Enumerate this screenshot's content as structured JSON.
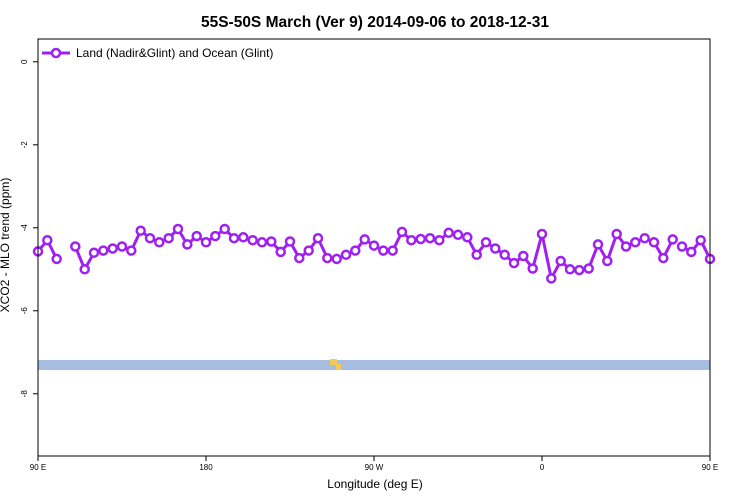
{
  "chart_data": {
    "type": "line",
    "title": "55S-50S March (Ver 9)   2014-09-06 to 2018-12-31",
    "xlabel": "Longitude (deg E)",
    "ylabel": "XCO2 - MLO trend (ppm)",
    "xlim": [
      90,
      450
    ],
    "ylim": [
      -9.5,
      0.55
    ],
    "x_ticks": [
      {
        "value": 90,
        "label": "90 E"
      },
      {
        "value": 180,
        "label": "180"
      },
      {
        "value": 270,
        "label": "90 W"
      },
      {
        "value": 360,
        "label": "0"
      },
      {
        "value": 450,
        "label": "90 E"
      },
      {
        "value": 540,
        "label": "180"
      }
    ],
    "y_ticks": [
      {
        "value": 0,
        "label": "0"
      },
      {
        "value": -2,
        "label": "-2"
      },
      {
        "value": -4,
        "label": "-4"
      },
      {
        "value": -6,
        "label": "-6"
      },
      {
        "value": -8,
        "label": "-8"
      }
    ],
    "legend_position": "top-left",
    "series": [
      {
        "name": "Land (Nadir&Glint) and Ocean (Glint)",
        "color": "#a020f0",
        "segments": [
          {
            "x": [
              90,
              95,
              100
            ],
            "y": [
              -4.57,
              -4.3,
              -4.75
            ]
          },
          {
            "x": [
              110,
              115,
              120,
              125,
              130,
              135,
              140,
              145,
              150,
              155,
              160,
              165,
              170,
              175,
              180,
              185,
              190,
              195,
              200,
              205,
              210,
              215,
              220,
              225,
              230,
              235,
              240,
              245,
              250,
              255,
              260,
              265,
              270,
              275,
              280,
              285,
              290,
              295,
              300,
              305,
              310,
              315,
              320,
              325,
              330,
              335,
              340,
              345,
              350,
              355,
              360,
              365,
              370,
              375,
              380,
              385,
              390,
              395,
              400,
              405,
              410,
              415,
              420,
              425,
              430
            ],
            "y": [
              -4.45,
              -5.0,
              -4.6,
              -4.55,
              -4.5,
              -4.45,
              -4.55,
              -4.07,
              -4.25,
              -4.35,
              -4.25,
              -4.03,
              -4.4,
              -4.2,
              -4.35,
              -4.2,
              -4.03,
              -4.25,
              -4.23,
              -4.3,
              -4.35,
              -4.33,
              -4.58,
              -4.33,
              -4.73,
              -4.55,
              -4.25,
              -4.73,
              -4.75,
              -4.65,
              -4.55,
              -4.28,
              -4.43,
              -4.55,
              -4.55,
              -4.1,
              -4.3,
              -4.27,
              -4.25,
              -4.3,
              -4.12,
              -4.17,
              -4.23,
              -4.65,
              -4.35,
              -4.5,
              -4.65,
              -4.85,
              -4.68,
              -4.98,
              -4.15,
              -5.22,
              -4.8,
              -5.0,
              -5.02,
              -4.98,
              -4.4,
              -4.8,
              -4.15,
              -4.45,
              -4.35,
              -4.25,
              -4.35,
              -4.73,
              -4.28
            ]
          },
          {
            "x": [
              435,
              440,
              445,
              450
            ],
            "y": [
              -4.45,
              -4.58,
              -4.3,
              -4.75
            ]
          }
        ]
      }
    ]
  }
}
